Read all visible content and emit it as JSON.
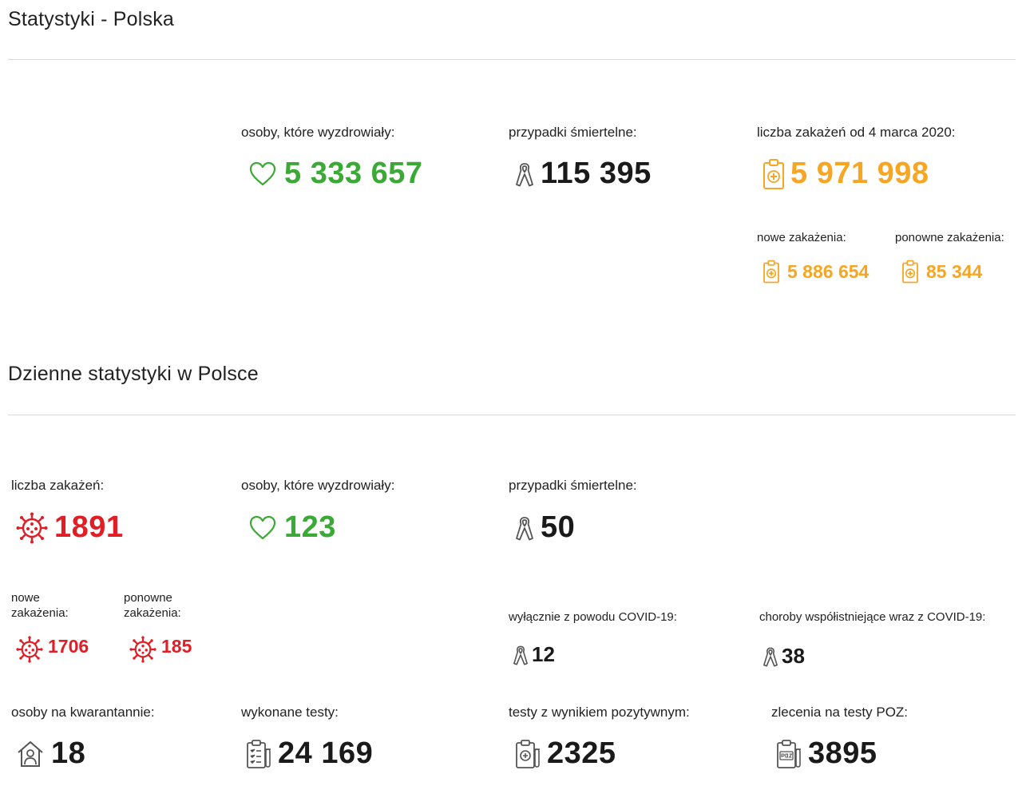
{
  "polska": {
    "title": "Statystyki - Polska",
    "recovered": {
      "label": "osoby, które wyzdrowiały:",
      "value": "5 333 657",
      "icon": "heart-icon"
    },
    "deaths": {
      "label": "przypadki śmiertelne:",
      "value": "115 395",
      "icon": "ribbon-icon"
    },
    "infections": {
      "label": "liczba zakażeń od 4 marca 2020:",
      "value": "5 971 998",
      "icon": "clipboard-cross-icon"
    },
    "new_infections": {
      "label": "nowe zakażenia:",
      "value": "5 886 654"
    },
    "re_infections": {
      "label": "ponowne zakażenia:",
      "value": "85 344"
    }
  },
  "daily": {
    "title": "Dzienne statystyki w Polsce",
    "infections": {
      "label": "liczba zakażeń:",
      "value": "1891",
      "icon": "virus-icon"
    },
    "new_infections": {
      "label_line1": "nowe",
      "label_line2": "zakażenia:",
      "value": "1706"
    },
    "re_infections": {
      "label_line1": "ponowne",
      "label_line2": "zakażenia:",
      "value": "185"
    },
    "recovered": {
      "label": "osoby, które wyzdrowiały:",
      "value": "123"
    },
    "deaths": {
      "label": "przypadki śmiertelne:",
      "value": "50"
    },
    "deaths_covid_only": {
      "label": "wyłącznie z powodu COVID-19:",
      "value": "12"
    },
    "deaths_comorbid": {
      "label": "choroby współistniejące wraz z COVID-19:",
      "value": "38"
    },
    "quarantine": {
      "label": "osoby na kwarantannie:",
      "value": "18",
      "icon": "house-person-icon"
    },
    "tests": {
      "label": "wykonane testy:",
      "value": "24 169",
      "icon": "test-clipboard-icon"
    },
    "positive_tests": {
      "label": "testy z wynikiem pozytywnym:",
      "value": "2325",
      "icon": "positive-test-icon"
    },
    "poz_orders": {
      "label": "zlecenia na testy POZ:",
      "value": "3895",
      "icon": "poz-test-icon"
    }
  },
  "colors": {
    "green": "#3aa935",
    "orange": "#f6a623",
    "red": "#e11d26",
    "dark": "#1a1a1a"
  }
}
